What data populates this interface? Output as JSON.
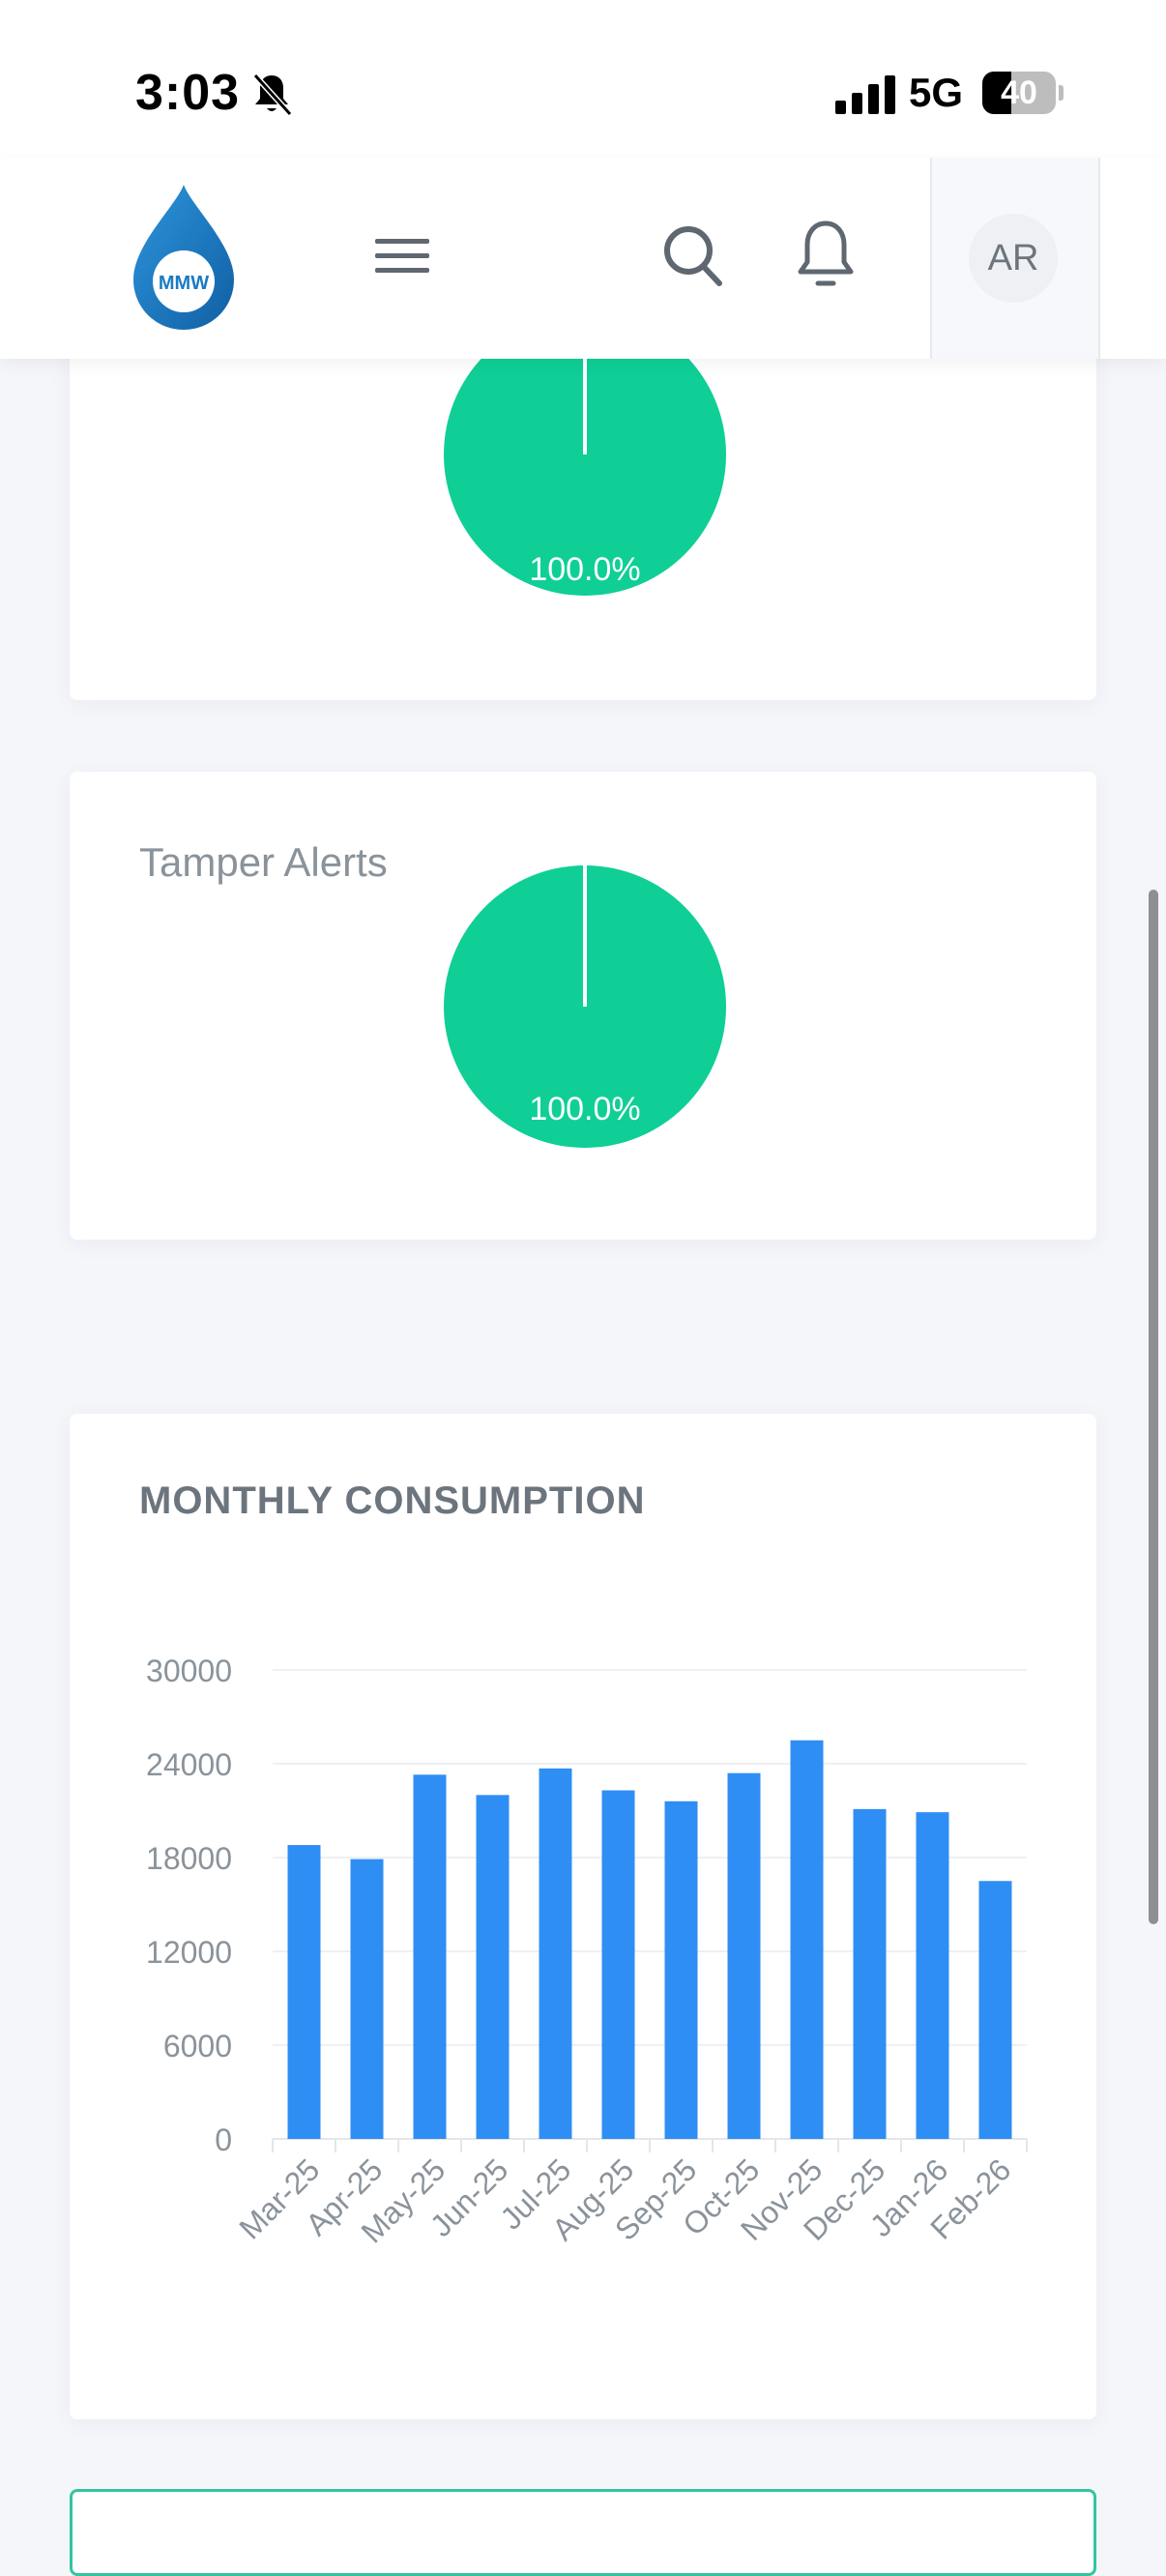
{
  "status_bar": {
    "time": "3:03",
    "network": "5G",
    "battery_level": "40",
    "battery_fraction": 0.4
  },
  "header": {
    "logo_text": "MMW",
    "avatar_initials": "AR",
    "icons": [
      "hamburger-menu-icon",
      "search-icon",
      "bell-icon"
    ]
  },
  "cards": {
    "first_pie": {
      "percent_label": "100.0%"
    },
    "tamper_alerts": {
      "label": "Tamper Alerts",
      "percent_label": "100.0%"
    }
  },
  "colors": {
    "accent_green": "#0fcf96",
    "bar_blue": "#2f8ef4",
    "logo_blue": "#1a7bc4"
  },
  "chart_data": {
    "type": "bar",
    "title": "MONTHLY CONSUMPTION",
    "categories": [
      "Mar-25",
      "Apr-25",
      "May-25",
      "Jun-25",
      "Jul-25",
      "Aug-25",
      "Sep-25",
      "Oct-25",
      "Nov-25",
      "Dec-25",
      "Jan-26",
      "Feb-26"
    ],
    "values": [
      18800,
      17900,
      23300,
      22000,
      23700,
      22300,
      21600,
      23400,
      25500,
      21100,
      20900,
      16500
    ],
    "yticks": [
      0,
      6000,
      12000,
      18000,
      24000,
      30000
    ],
    "ylim": [
      0,
      30000
    ],
    "grid": true,
    "legend": false
  }
}
